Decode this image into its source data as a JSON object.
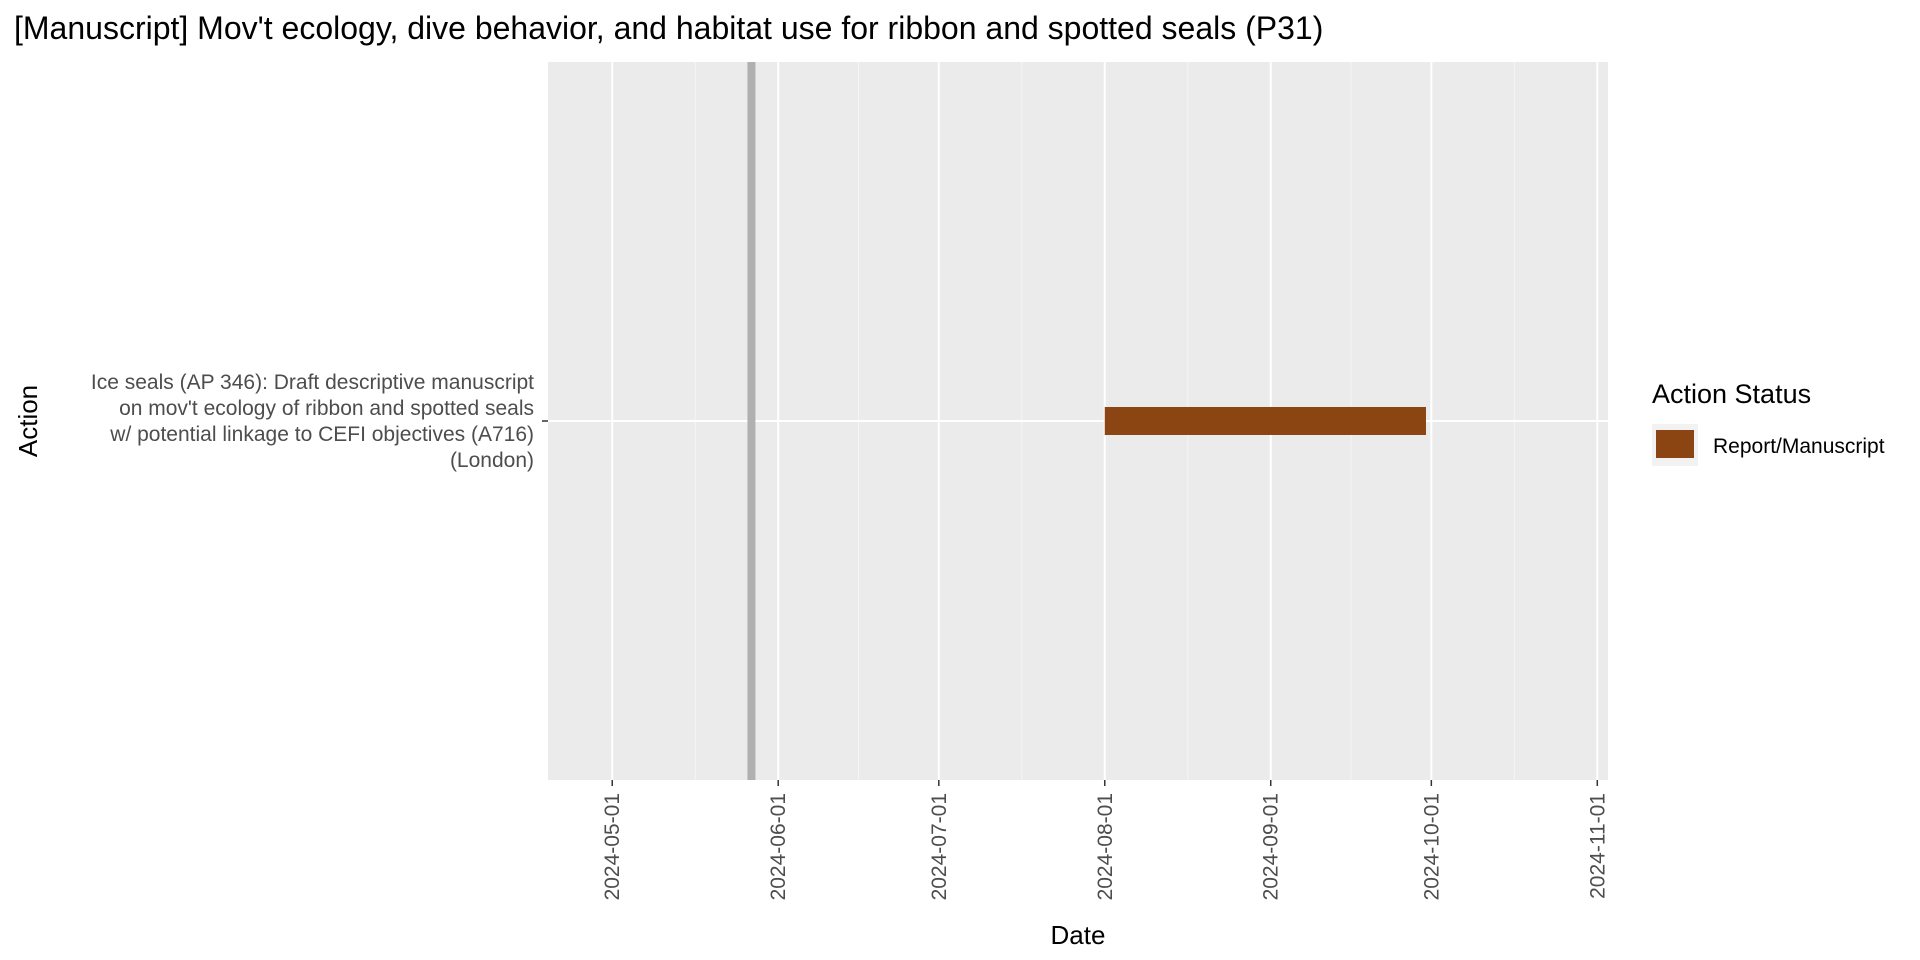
{
  "chart_data": {
    "type": "gantt",
    "title": "[Manuscript] Mov't ecology, dive behavior, and habitat use for ribbon and spotted seals (P31)",
    "xlabel": "Date",
    "ylabel": "Action",
    "x_axis": {
      "kind": "date",
      "range": [
        "2024-04-19",
        "2024-11-03"
      ],
      "ticks": [
        "2024-05-01",
        "2024-06-01",
        "2024-07-01",
        "2024-08-01",
        "2024-09-01",
        "2024-10-01",
        "2024-11-01"
      ]
    },
    "reference_line": {
      "date": "2024-05-27",
      "color": "#b0b0b0"
    },
    "tasks": [
      {
        "label_lines": [
          "Ice seals (AP 346): Draft descriptive manuscript",
          "on mov't ecology of ribbon and spotted seals",
          "w/ potential linkage to CEFI objectives (A716)",
          "(London)"
        ],
        "start": "2024-08-01",
        "end": "2024-09-30",
        "status": "Report/Manuscript"
      }
    ],
    "legend": {
      "title": "Action Status",
      "placement": "right",
      "items": [
        {
          "label": "Report/Manuscript",
          "color": "#8b4513"
        }
      ]
    },
    "panel_background": "#ebebeb",
    "grid": true,
    "grid_color": "#ffffff"
  }
}
